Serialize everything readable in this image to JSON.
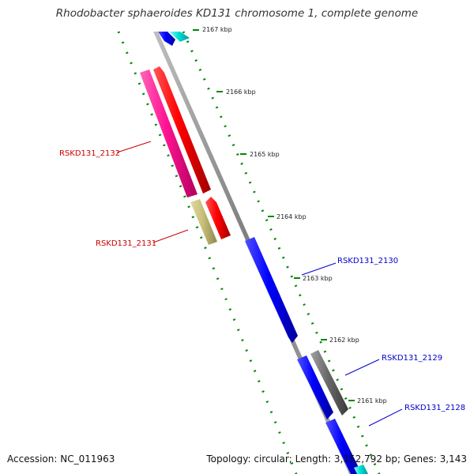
{
  "title": "Rhodobacter sphaeroides KD131 chromosome 1, complete genome",
  "accession": "Accession: NC_011963",
  "summary": "Topology: circular; Length: 3,152,792 bp; Genes: 3,143",
  "ticks": [
    "2167 kbp",
    "2166 kbp",
    "2165 kbp",
    "2164 kbp",
    "2163 kbp",
    "2162 kbp",
    "2161 kbp"
  ],
  "genes": {
    "RSKD131_2132": "RSKD131_2132",
    "RSKD131_2131": "RSKD131_2131",
    "RSKD131_2130": "RSKD131_2130",
    "RSKD131_2129": "RSKD131_2129",
    "RSKD131_2128": "RSKD131_2128"
  },
  "colors": {
    "forward_label": "#cc0000",
    "reverse_label": "#0000cc",
    "backbone": "#888888",
    "gc_track": "#008800",
    "pink": "#ff1493",
    "red": "#ff0000",
    "olive": "#c8c07a",
    "blue": "#0000ff",
    "cyan": "#00e0d8",
    "gray": "#606060"
  }
}
